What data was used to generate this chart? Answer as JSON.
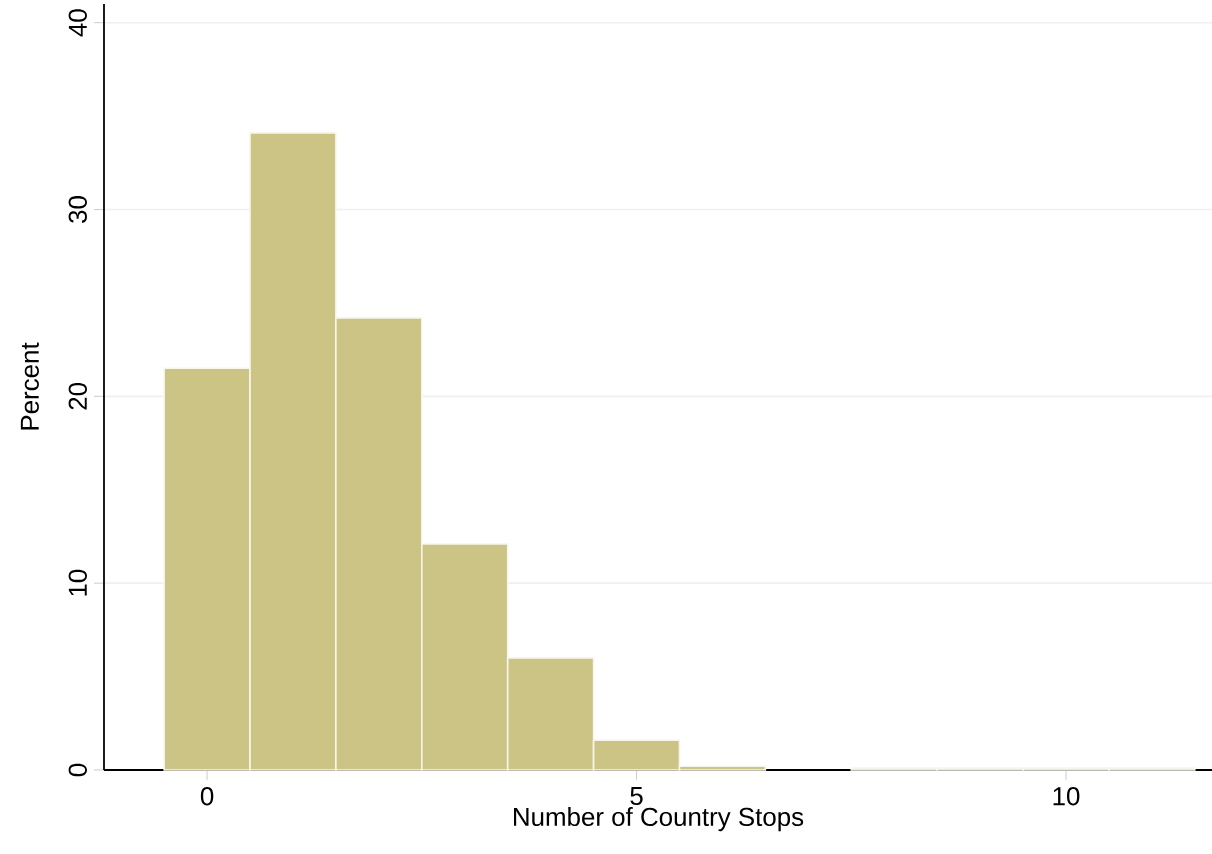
{
  "chart_data": {
    "type": "histogram",
    "xlabel": "Number of Country Stops",
    "ylabel": "Percent",
    "bins": [
      -0.5,
      0.5,
      1.5,
      2.5,
      3.5,
      4.5,
      5.5,
      6.5,
      7.5,
      8.5,
      9.5,
      10.5,
      11.5
    ],
    "values": [
      21.5,
      34.1,
      24.2,
      12.1,
      6.0,
      1.6,
      0.2,
      0,
      0.1,
      0.1,
      0.1,
      0.1
    ],
    "color": "#cbc484",
    "xlim": [
      -1.2,
      11.7
    ],
    "ylim": [
      0,
      41
    ],
    "xticks": [
      0,
      5,
      10
    ],
    "yticks": [
      0,
      10,
      20,
      30,
      40
    ],
    "grid": "y"
  }
}
